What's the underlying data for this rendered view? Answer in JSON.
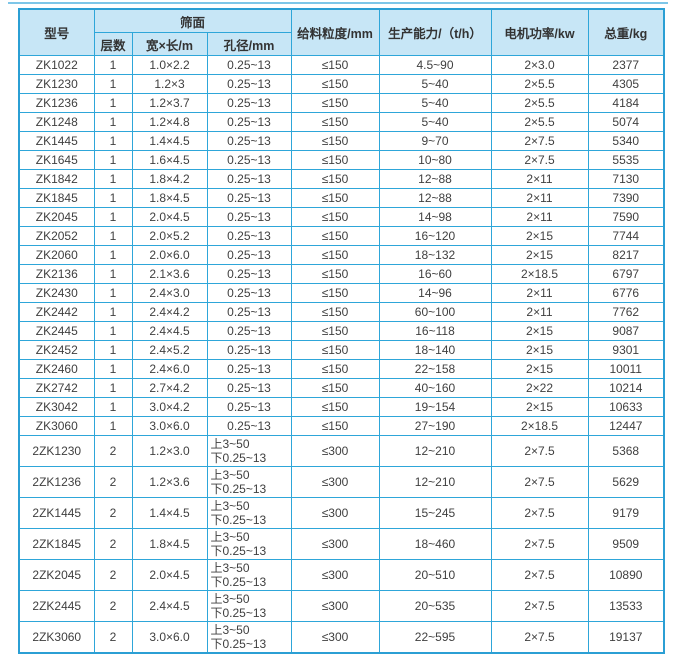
{
  "colors": {
    "border": "#2ea6d9",
    "header_bg": "#c7e6f6",
    "text": "#3f3f3f",
    "top_rule": "#7ec6e8"
  },
  "table": {
    "header": {
      "model": "型号",
      "screen_surface": "筛面",
      "layers": "层数",
      "size": "宽×长/m",
      "aperture": "孔径/mm",
      "feed_size": "给料粒度/mm",
      "capacity": "生产能力/（t/h）",
      "motor_power": "电机功率/kw",
      "weight": "总重/kg"
    },
    "rows": [
      {
        "model": "ZK1022",
        "layers": "1",
        "size": "1.0×2.2",
        "aperture": "0.25~13",
        "feed": "≤150",
        "capacity": "4.5~90",
        "power": "2×3.0",
        "weight": "2377"
      },
      {
        "model": "ZK1230",
        "layers": "1",
        "size": "1.2×3",
        "aperture": "0.25~13",
        "feed": "≤150",
        "capacity": "5~40",
        "power": "2×5.5",
        "weight": "4305"
      },
      {
        "model": "ZK1236",
        "layers": "1",
        "size": "1.2×3.7",
        "aperture": "0.25~13",
        "feed": "≤150",
        "capacity": "5~40",
        "power": "2×5.5",
        "weight": "4184"
      },
      {
        "model": "ZK1248",
        "layers": "1",
        "size": "1.2×4.8",
        "aperture": "0.25~13",
        "feed": "≤150",
        "capacity": "5~40",
        "power": "2×5.5",
        "weight": "5074"
      },
      {
        "model": "ZK1445",
        "layers": "1",
        "size": "1.4×4.5",
        "aperture": "0.25~13",
        "feed": "≤150",
        "capacity": "9~70",
        "power": "2×7.5",
        "weight": "5340"
      },
      {
        "model": "ZK1645",
        "layers": "1",
        "size": "1.6×4.5",
        "aperture": "0.25~13",
        "feed": "≤150",
        "capacity": "10~80",
        "power": "2×7.5",
        "weight": "5535"
      },
      {
        "model": "ZK1842",
        "layers": "1",
        "size": "1.8×4.2",
        "aperture": "0.25~13",
        "feed": "≤150",
        "capacity": "12~88",
        "power": "2×11",
        "weight": "7130"
      },
      {
        "model": "ZK1845",
        "layers": "1",
        "size": "1.8×4.5",
        "aperture": "0.25~13",
        "feed": "≤150",
        "capacity": "12~88",
        "power": "2×11",
        "weight": "7390"
      },
      {
        "model": "ZK2045",
        "layers": "1",
        "size": "2.0×4.5",
        "aperture": "0.25~13",
        "feed": "≤150",
        "capacity": "14~98",
        "power": "2×11",
        "weight": "7590"
      },
      {
        "model": "ZK2052",
        "layers": "1",
        "size": "2.0×5.2",
        "aperture": "0.25~13",
        "feed": "≤150",
        "capacity": "16~120",
        "power": "2×15",
        "weight": "7744"
      },
      {
        "model": "ZK2060",
        "layers": "1",
        "size": "2.0×6.0",
        "aperture": "0.25~13",
        "feed": "≤150",
        "capacity": "18~132",
        "power": "2×15",
        "weight": "8217"
      },
      {
        "model": "ZK2136",
        "layers": "1",
        "size": "2.1×3.6",
        "aperture": "0.25~13",
        "feed": "≤150",
        "capacity": "16~60",
        "power": "2×18.5",
        "weight": "6797"
      },
      {
        "model": "ZK2430",
        "layers": "1",
        "size": "2.4×3.0",
        "aperture": "0.25~13",
        "feed": "≤150",
        "capacity": "14~96",
        "power": "2×11",
        "weight": "6776"
      },
      {
        "model": "ZK2442",
        "layers": "1",
        "size": "2.4×4.2",
        "aperture": "0.25~13",
        "feed": "≤150",
        "capacity": "60~100",
        "power": "2×11",
        "weight": "7762"
      },
      {
        "model": "ZK2445",
        "layers": "1",
        "size": "2.4×4.5",
        "aperture": "0.25~13",
        "feed": "≤150",
        "capacity": "16~118",
        "power": "2×15",
        "weight": "9087"
      },
      {
        "model": "ZK2452",
        "layers": "1",
        "size": "2.4×5.2",
        "aperture": "0.25~13",
        "feed": "≤150",
        "capacity": "18~140",
        "power": "2×15",
        "weight": "9301"
      },
      {
        "model": "ZK2460",
        "layers": "1",
        "size": "2.4×6.0",
        "aperture": "0.25~13",
        "feed": "≤150",
        "capacity": "22~158",
        "power": "2×15",
        "weight": "10011"
      },
      {
        "model": "ZK2742",
        "layers": "1",
        "size": "2.7×4.2",
        "aperture": "0.25~13",
        "feed": "≤150",
        "capacity": "40~160",
        "power": "2×22",
        "weight": "10214"
      },
      {
        "model": "ZK3042",
        "layers": "1",
        "size": "3.0×4.2",
        "aperture": "0.25~13",
        "feed": "≤150",
        "capacity": "19~154",
        "power": "2×15",
        "weight": "10633"
      },
      {
        "model": "ZK3060",
        "layers": "1",
        "size": "3.0×6.0",
        "aperture": "0.25~13",
        "feed": "≤150",
        "capacity": "27~190",
        "power": "2×18.5",
        "weight": "12447"
      },
      {
        "model": "2ZK1230",
        "layers": "2",
        "size": "1.2×3.0",
        "aperture": "上3~50\n下0.25~13",
        "feed": "≤300",
        "capacity": "12~210",
        "power": "2×7.5",
        "weight": "5368"
      },
      {
        "model": "2ZK1236",
        "layers": "2",
        "size": "1.2×3.6",
        "aperture": "上3~50\n下0.25~13",
        "feed": "≤300",
        "capacity": "12~210",
        "power": "2×7.5",
        "weight": "5629"
      },
      {
        "model": "2ZK1445",
        "layers": "2",
        "size": "1.4×4.5",
        "aperture": "上3~50\n下0.25~13",
        "feed": "≤300",
        "capacity": "15~245",
        "power": "2×7.5",
        "weight": "9179"
      },
      {
        "model": "2ZK1845",
        "layers": "2",
        "size": "1.8×4.5",
        "aperture": "上3~50\n下0.25~13",
        "feed": "≤300",
        "capacity": "18~460",
        "power": "2×7.5",
        "weight": "9509"
      },
      {
        "model": "2ZK2045",
        "layers": "2",
        "size": "2.0×4.5",
        "aperture": "上3~50\n下0.25~13",
        "feed": "≤300",
        "capacity": "20~510",
        "power": "2×7.5",
        "weight": "10890"
      },
      {
        "model": "2ZK2445",
        "layers": "2",
        "size": "2.4×4.5",
        "aperture": "上3~50\n下0.25~13",
        "feed": "≤300",
        "capacity": "20~535",
        "power": "2×7.5",
        "weight": "13533"
      },
      {
        "model": "2ZK3060",
        "layers": "2",
        "size": "3.0×6.0",
        "aperture": "上3~50\n下0.25~13",
        "feed": "≤300",
        "capacity": "22~595",
        "power": "2×7.5",
        "weight": "19137"
      }
    ]
  }
}
